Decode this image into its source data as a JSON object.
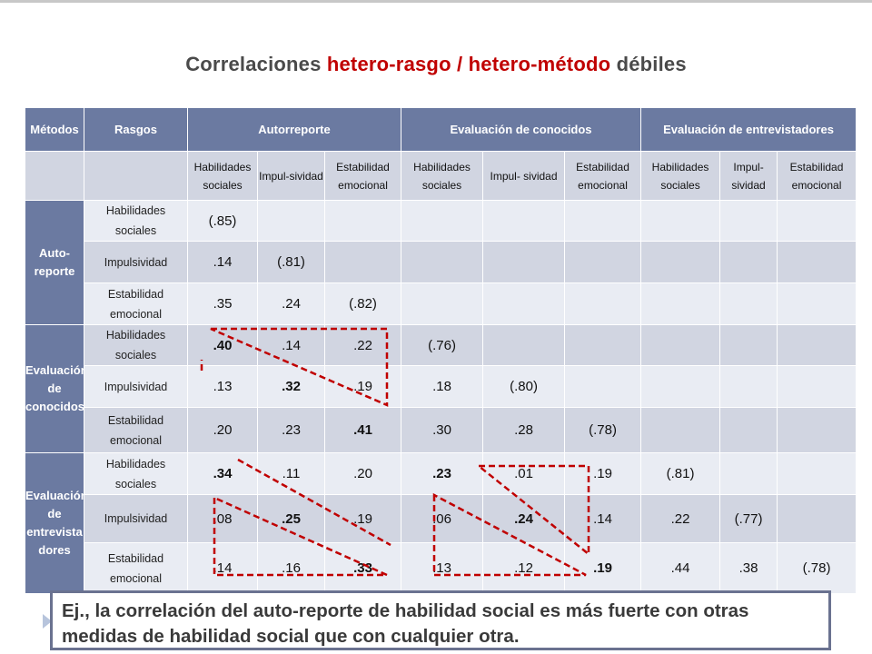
{
  "title": {
    "before": "Correlaciones ",
    "highlight": "hetero-rasgo / hetero-método",
    "after": " débiles"
  },
  "header": {
    "metodos": "Métodos",
    "rasgos": "Rasgos",
    "autorreporte": "Autorreporte",
    "conocidos": "Evaluación de conocidos",
    "entrevistadores": "Evaluación de entrevistadores"
  },
  "subheader": {
    "hab": "Habilidades sociales",
    "imp": "Impul-sividad",
    "est": "Estabilidad emocional",
    "hab_alt": "Habilidades sociales",
    "imp_alt": "Impul- sividad",
    "est_alt": "Estabilidad emocional"
  },
  "methods": {
    "auto": "Auto- reporte",
    "conocidos": "Evaluación de conocidos",
    "entrevista": "Evaluación de entrevista dores"
  },
  "traits": {
    "hab": "Habilidades sociales",
    "imp": "Impulsividad",
    "est": "Estabilidad emocional"
  },
  "rows": [
    {
      "cells": [
        "(.85)",
        "",
        "",
        "",
        "",
        "",
        "",
        "",
        ""
      ]
    },
    {
      "cells": [
        ".14",
        "(.81)",
        "",
        "",
        "",
        "",
        "",
        "",
        ""
      ]
    },
    {
      "cells": [
        ".35",
        ".24",
        "(.82)",
        "",
        "",
        "",
        "",
        "",
        ""
      ]
    },
    {
      "cells": [
        ".40",
        ".14",
        ".22",
        "(.76)",
        "",
        "",
        "",
        "",
        ""
      ]
    },
    {
      "cells": [
        ".13",
        ".32",
        ".19",
        ".18",
        "(.80)",
        "",
        "",
        "",
        ""
      ]
    },
    {
      "cells": [
        ".20",
        ".23",
        ".41",
        ".30",
        ".28",
        "(.78)",
        "",
        "",
        ""
      ]
    },
    {
      "cells": [
        ".34",
        ".11",
        ".20",
        ".23",
        ".01",
        ".19",
        "(.81)",
        "",
        ""
      ]
    },
    {
      "cells": [
        ".08",
        ".25",
        ".19",
        ".06",
        ".24",
        ".14",
        ".22",
        "(.77)",
        ""
      ]
    },
    {
      "cells": [
        ".14",
        ".16",
        ".33",
        ".13",
        ".12",
        ".19",
        ".44",
        ".38",
        "(.78)"
      ]
    }
  ],
  "note": "Ej., la correlación del auto-reporte de habilidad social es más fuerte con otras medidas de habilidad social que con cualquier otra.",
  "colors": {
    "header": "#6b7aa1",
    "row_light": "#e9ecf3",
    "row_dark": "#d1d5e1",
    "highlight": "#c00000",
    "dash": "#c00000"
  }
}
